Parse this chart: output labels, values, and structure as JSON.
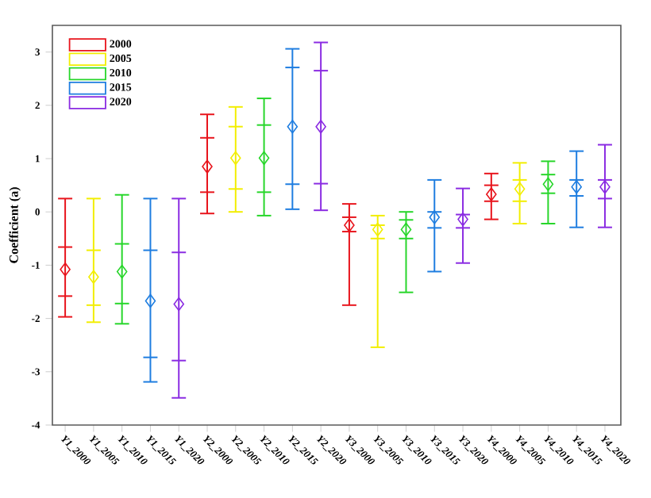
{
  "chart_data": {
    "type": "box",
    "ylabel": "Coefficient (a)",
    "categories": [
      "Y1_2000",
      "Y1_2005",
      "Y1_2010",
      "Y1_2015",
      "Y1_2020",
      "Y2_2000",
      "Y2_2005",
      "Y2_2010",
      "Y2_2015",
      "Y2_2020",
      "Y3_2000",
      "Y3_2005",
      "Y3_2010",
      "Y3_2015",
      "Y3_2020",
      "Y4_2000",
      "Y4_2005",
      "Y4_2010",
      "Y4_2015",
      "Y4_2020"
    ],
    "ylim": [
      -4,
      3.5
    ],
    "yticks": [
      -4,
      -3,
      -2,
      -1,
      0,
      1,
      2,
      3
    ],
    "legend": "top left",
    "marker": "diamond",
    "series": [
      {
        "name": "2000",
        "color": "#e8141c",
        "boxes": [
          {
            "low": -1.97,
            "q1": -1.58,
            "median": -1.08,
            "q3": -0.66,
            "high": 0.25
          },
          null,
          null,
          null,
          null,
          {
            "low": -0.03,
            "q1": 0.37,
            "median": 0.85,
            "q3": 1.39,
            "high": 1.83
          },
          null,
          null,
          null,
          null,
          {
            "low": -1.75,
            "q1": -0.37,
            "median": -0.25,
            "q3": -0.1,
            "high": 0.15
          },
          null,
          null,
          null,
          null,
          {
            "low": -0.14,
            "q1": 0.2,
            "median": 0.33,
            "q3": 0.5,
            "high": 0.72
          },
          null,
          null,
          null,
          null
        ]
      },
      {
        "name": "2005",
        "color": "#f2ee00",
        "boxes": [
          null,
          {
            "low": -2.07,
            "q1": -1.75,
            "median": -1.22,
            "q3": -0.72,
            "high": 0.25
          },
          null,
          null,
          null,
          null,
          {
            "low": 0.0,
            "q1": 0.43,
            "median": 1.01,
            "q3": 1.6,
            "high": 1.97
          },
          null,
          null,
          null,
          null,
          {
            "low": -2.54,
            "q1": -0.5,
            "median": -0.33,
            "q3": -0.25,
            "high": -0.07
          },
          null,
          null,
          null,
          null,
          {
            "low": -0.22,
            "q1": 0.2,
            "median": 0.43,
            "q3": 0.6,
            "high": 0.92
          },
          null,
          null,
          null
        ]
      },
      {
        "name": "2010",
        "color": "#27d62a",
        "boxes": [
          null,
          null,
          {
            "low": -2.1,
            "q1": -1.72,
            "median": -1.12,
            "q3": -0.6,
            "high": 0.32
          },
          null,
          null,
          null,
          null,
          {
            "low": -0.07,
            "q1": 0.37,
            "median": 1.01,
            "q3": 1.63,
            "high": 2.13
          },
          null,
          null,
          null,
          null,
          {
            "low": -1.51,
            "q1": -0.5,
            "median": -0.33,
            "q3": -0.15,
            "high": 0.0
          },
          null,
          null,
          null,
          null,
          {
            "low": -0.22,
            "q1": 0.35,
            "median": 0.52,
            "q3": 0.7,
            "high": 0.95
          },
          null,
          null
        ]
      },
      {
        "name": "2015",
        "color": "#1e7de0",
        "boxes": [
          null,
          null,
          null,
          {
            "low": -3.19,
            "q1": -2.73,
            "median": -1.67,
            "q3": -0.72,
            "high": 0.25
          },
          null,
          null,
          null,
          null,
          {
            "low": 0.05,
            "q1": 0.52,
            "median": 1.6,
            "q3": 2.71,
            "high": 3.06
          },
          null,
          null,
          null,
          null,
          {
            "low": -1.12,
            "q1": -0.3,
            "median": -0.1,
            "q3": 0.0,
            "high": 0.6
          },
          null,
          null,
          null,
          null,
          {
            "low": -0.29,
            "q1": 0.3,
            "median": 0.47,
            "q3": 0.6,
            "high": 1.14
          },
          null
        ]
      },
      {
        "name": "2020",
        "color": "#8a2be2",
        "boxes": [
          null,
          null,
          null,
          null,
          {
            "low": -3.49,
            "q1": -2.79,
            "median": -1.73,
            "q3": -0.76,
            "high": 0.25
          },
          null,
          null,
          null,
          null,
          {
            "low": 0.03,
            "q1": 0.53,
            "median": 1.6,
            "q3": 2.65,
            "high": 3.18
          },
          null,
          null,
          null,
          null,
          {
            "low": -0.96,
            "q1": -0.3,
            "median": -0.14,
            "q3": -0.05,
            "high": 0.44
          },
          null,
          null,
          null,
          null,
          {
            "low": -0.29,
            "q1": 0.25,
            "median": 0.47,
            "q3": 0.6,
            "high": 1.26
          }
        ]
      }
    ]
  }
}
